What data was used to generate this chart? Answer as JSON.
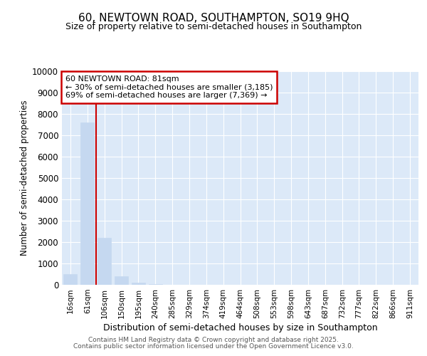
{
  "title1": "60, NEWTOWN ROAD, SOUTHAMPTON, SO19 9HQ",
  "title2": "Size of property relative to semi-detached houses in Southampton",
  "xlabel": "Distribution of semi-detached houses by size in Southampton",
  "ylabel": "Number of semi-detached properties",
  "categories": [
    "16sqm",
    "61sqm",
    "106sqm",
    "150sqm",
    "195sqm",
    "240sqm",
    "285sqm",
    "329sqm",
    "374sqm",
    "419sqm",
    "464sqm",
    "508sqm",
    "553sqm",
    "598sqm",
    "643sqm",
    "687sqm",
    "732sqm",
    "777sqm",
    "822sqm",
    "866sqm",
    "911sqm"
  ],
  "values": [
    500,
    7600,
    2200,
    400,
    100,
    30,
    15,
    8,
    5,
    3,
    2,
    2,
    1,
    1,
    1,
    1,
    0,
    0,
    0,
    0,
    0
  ],
  "bar_color": "#c5d8f0",
  "bar_edgecolor": "#c5d8f0",
  "vline_x": 1.5,
  "vline_color": "#cc0000",
  "annotation_title": "60 NEWTOWN ROAD: 81sqm",
  "annotation_line1": "← 30% of semi-detached houses are smaller (3,185)",
  "annotation_line2": "69% of semi-detached houses are larger (7,369) →",
  "annotation_box_color": "#cc0000",
  "ylim": [
    0,
    10000
  ],
  "yticks": [
    0,
    1000,
    2000,
    3000,
    4000,
    5000,
    6000,
    7000,
    8000,
    9000,
    10000
  ],
  "footer1": "Contains HM Land Registry data © Crown copyright and database right 2025.",
  "footer2": "Contains public sector information licensed under the Open Government Licence v3.0.",
  "bg_color": "#ffffff",
  "plot_bg_color": "#dce9f8",
  "grid_color": "#ffffff",
  "title1_fontsize": 11,
  "title2_fontsize": 9
}
